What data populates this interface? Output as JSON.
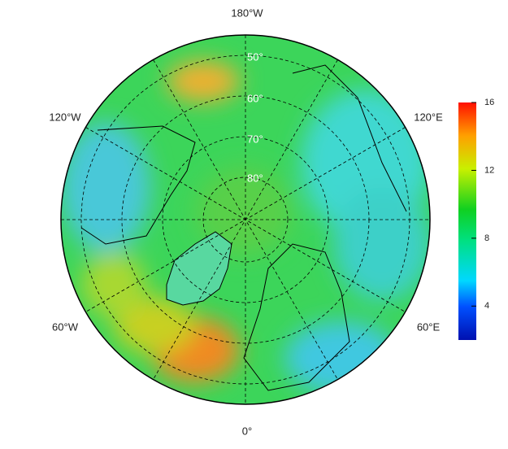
{
  "map": {
    "longitude_labels": [
      "180°W",
      "120°W",
      "120°E",
      "60°W",
      "60°E",
      "0°"
    ],
    "latitude_labels": [
      "50°",
      "60°",
      "70°",
      "80°"
    ]
  },
  "colorbar": {
    "lim": [
      2,
      16
    ],
    "ticks": [
      4,
      8,
      12,
      16
    ]
  }
}
